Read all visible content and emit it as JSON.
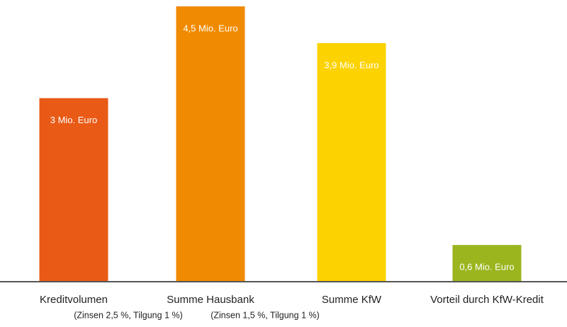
{
  "chart_data": {
    "type": "bar",
    "categories": [
      "Kreditvolumen",
      "Summe Hausbank",
      "Summe KfW",
      "Vorteil durch KfW-Kredit"
    ],
    "category_notes": [
      "(Zinsen 2,5 %, Tilgung 1 %)",
      "(Zinsen 1,5 %, Tilgung 1 %)",
      null,
      null
    ],
    "values": [
      3,
      4.5,
      3.9,
      0.6
    ],
    "value_labels": [
      "3 Mio. Euro",
      "4,5 Mio. Euro",
      "3,9 Mio. Euro",
      "0,6 Mio. Euro"
    ],
    "colors": [
      "#e85a16",
      "#f08a00",
      "#fcd200",
      "#9ab51e"
    ],
    "ylim": [
      0,
      4.5
    ]
  }
}
